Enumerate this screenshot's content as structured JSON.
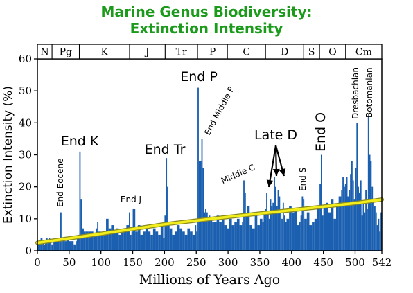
{
  "title_line1": "Marine Genus Biodiversity:",
  "title_line2": "Extinction Intensity",
  "chart_data": {
    "type": "bar",
    "title": "Marine Genus Biodiversity: Extinction Intensity",
    "xlabel": "Millions of Years Ago",
    "ylabel": "Extinction Intensity (%)",
    "xlim": [
      0,
      542
    ],
    "ylim": [
      0,
      60
    ],
    "x_reversed": false,
    "xticks": [
      0,
      50,
      100,
      150,
      200,
      250,
      300,
      350,
      400,
      450,
      500,
      542
    ],
    "yticks": [
      0,
      10,
      20,
      30,
      40,
      50,
      60
    ],
    "grid": false,
    "colors": {
      "bars": "#1a5fb0",
      "trend": "#f2ee1e",
      "title": "#1b9a1b",
      "axis": "#000000"
    },
    "periods": [
      {
        "label": "N",
        "start": 0,
        "end": 23
      },
      {
        "label": "Pg",
        "start": 23,
        "end": 66
      },
      {
        "label": "K",
        "start": 66,
        "end": 145
      },
      {
        "label": "J",
        "start": 145,
        "end": 201
      },
      {
        "label": "Tr",
        "start": 201,
        "end": 252
      },
      {
        "label": "P",
        "start": 252,
        "end": 299
      },
      {
        "label": "C",
        "start": 299,
        "end": 359
      },
      {
        "label": "D",
        "start": 359,
        "end": 419
      },
      {
        "label": "S",
        "start": 419,
        "end": 444
      },
      {
        "label": "O",
        "start": 444,
        "end": 485
      },
      {
        "label": "Cm",
        "start": 485,
        "end": 542
      }
    ],
    "series": [
      {
        "x": [
          0,
          3,
          5,
          8,
          10,
          12,
          14,
          16,
          18,
          20,
          22,
          24,
          26,
          28,
          30,
          32,
          34,
          36,
          38,
          40,
          43,
          46,
          50,
          54,
          57,
          60,
          62,
          64,
          66,
          68,
          70,
          73,
          76,
          80,
          84,
          88,
          92,
          94,
          96,
          100,
          104,
          108,
          112,
          116,
          120,
          124,
          128,
          132,
          136,
          140,
          144,
          146,
          148,
          150,
          154,
          158,
          162,
          166,
          170,
          174,
          178,
          182,
          186,
          190,
          194,
          198,
          200,
          202,
          204,
          206,
          208,
          212,
          216,
          220,
          224,
          228,
          232,
          236,
          240,
          244,
          248,
          250,
          252,
          254,
          256,
          258,
          260,
          262,
          264,
          266,
          268,
          270,
          272,
          275,
          278,
          282,
          286,
          290,
          294,
          298,
          302,
          306,
          310,
          314,
          318,
          322,
          324,
          326,
          328,
          330,
          334,
          338,
          342,
          346,
          350,
          354,
          356,
          358,
          360,
          362,
          364,
          366,
          368,
          370,
          372,
          374,
          376,
          378,
          380,
          382,
          384,
          386,
          388,
          390,
          392,
          396,
          400,
          404,
          408,
          412,
          414,
          416,
          418,
          420,
          424,
          428,
          432,
          436,
          440,
          444,
          446,
          448,
          450,
          454,
          458,
          462,
          466,
          470,
          474,
          478,
          480,
          482,
          484,
          486,
          488,
          490,
          492,
          494,
          496,
          498,
          500,
          502,
          504,
          506,
          508,
          510,
          512,
          514,
          516,
          518,
          520,
          522,
          524,
          526,
          528,
          530,
          532,
          534,
          536,
          538,
          540
        ],
        "y": [
          2,
          2,
          4,
          3,
          2,
          3,
          4,
          3,
          4,
          3,
          2,
          3,
          4,
          3,
          3,
          4,
          3,
          12,
          4,
          4,
          3,
          4,
          3,
          3,
          2,
          3,
          4,
          5,
          31,
          16,
          7,
          6,
          6,
          6,
          6,
          5,
          7,
          9,
          6,
          5,
          6,
          10,
          7,
          8,
          6,
          7,
          5,
          6,
          7,
          8,
          12,
          5,
          6,
          13,
          6,
          8,
          5,
          6,
          8,
          6,
          5,
          7,
          6,
          5,
          8,
          4,
          11,
          29,
          20,
          9,
          7,
          5,
          6,
          8,
          7,
          6,
          5,
          7,
          6,
          5,
          8,
          6,
          51,
          28,
          28,
          35,
          26,
          12,
          13,
          12,
          10,
          11,
          10,
          9,
          9,
          11,
          9,
          10,
          8,
          7,
          10,
          8,
          9,
          10,
          8,
          9,
          22,
          18,
          11,
          14,
          8,
          7,
          11,
          8,
          10,
          9,
          12,
          13,
          18,
          12,
          10,
          16,
          14,
          15,
          23,
          20,
          14,
          19,
          17,
          12,
          10,
          15,
          11,
          9,
          10,
          14,
          12,
          13,
          8,
          9,
          11,
          17,
          16,
          10,
          12,
          8,
          9,
          10,
          14,
          21,
          30,
          11,
          14,
          15,
          12,
          16,
          10,
          14,
          17,
          19,
          23,
          20,
          21,
          23,
          17,
          19,
          24,
          28,
          22,
          16,
          26,
          40,
          20,
          18,
          22,
          11,
          15,
          12,
          19,
          13,
          42,
          30,
          28,
          20,
          16,
          14,
          12,
          8,
          10,
          6,
          12
        ]
      }
    ],
    "trend": {
      "x": [
        0,
        100,
        200,
        300,
        400,
        500,
        542
      ],
      "y": [
        2.5,
        5.3,
        8.3,
        10.6,
        12.7,
        14.9,
        16
      ]
    },
    "annotations": [
      {
        "text": "End K",
        "x": 66
      },
      {
        "text": "End Eocene",
        "x": 34
      },
      {
        "text": "End J",
        "x": 147
      },
      {
        "text": "End Tr",
        "x": 201
      },
      {
        "text": "End P",
        "x": 252
      },
      {
        "text": "End Middle P",
        "x": 260
      },
      {
        "text": "Middle C",
        "x": 323
      },
      {
        "text": "Late D",
        "x": 376
      },
      {
        "text": "End S",
        "x": 419
      },
      {
        "text": "End O",
        "x": 445
      },
      {
        "text": "Dresbachian",
        "x": 500
      },
      {
        "text": "Botomanian",
        "x": 518
      }
    ]
  }
}
